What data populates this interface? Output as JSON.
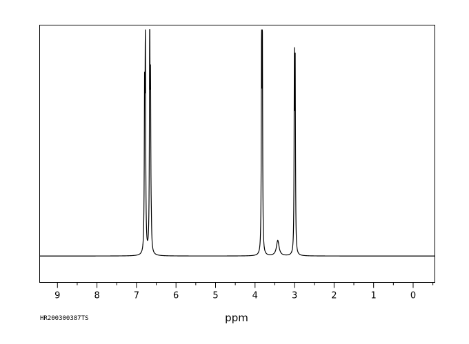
{
  "chart_data": {
    "type": "line",
    "xlabel": "ppm",
    "x_axis_reversed": true,
    "xlim": [
      9.45,
      -0.55
    ],
    "ylim": [
      -0.12,
      1.05
    ],
    "x_major_ticks": [
      9,
      8,
      7,
      6,
      5,
      4,
      3,
      2,
      1,
      0
    ],
    "x_tick_labels": [
      "9",
      "8",
      "7",
      "6",
      "5",
      "4",
      "3",
      "2",
      "1",
      "0"
    ],
    "x_minor_step": 0.5,
    "grid": false,
    "legend": "none",
    "baseline": 0,
    "peaks": [
      {
        "ppm": 6.795,
        "height": 0.685,
        "width": 0.009
      },
      {
        "ppm": 6.775,
        "height": 0.96,
        "width": 0.009
      },
      {
        "ppm": 6.665,
        "height": 1.0,
        "width": 0.009
      },
      {
        "ppm": 6.645,
        "height": 0.68,
        "width": 0.009
      },
      {
        "ppm": 6.625,
        "height": 0.06,
        "width": 0.009
      },
      {
        "ppm": 3.835,
        "height": 0.95,
        "width": 0.008
      },
      {
        "ppm": 3.815,
        "height": 1.0,
        "width": 0.008
      },
      {
        "ppm": 3.425,
        "height": 0.07,
        "width": 0.04
      },
      {
        "ppm": 3.005,
        "height": 0.83,
        "width": 0.008
      },
      {
        "ppm": 2.985,
        "height": 0.83,
        "width": 0.008
      },
      {
        "ppm": 2.975,
        "height": 0.06,
        "width": 0.008
      }
    ],
    "line_color": "#000000"
  },
  "sample_id": "HR200300387TS"
}
